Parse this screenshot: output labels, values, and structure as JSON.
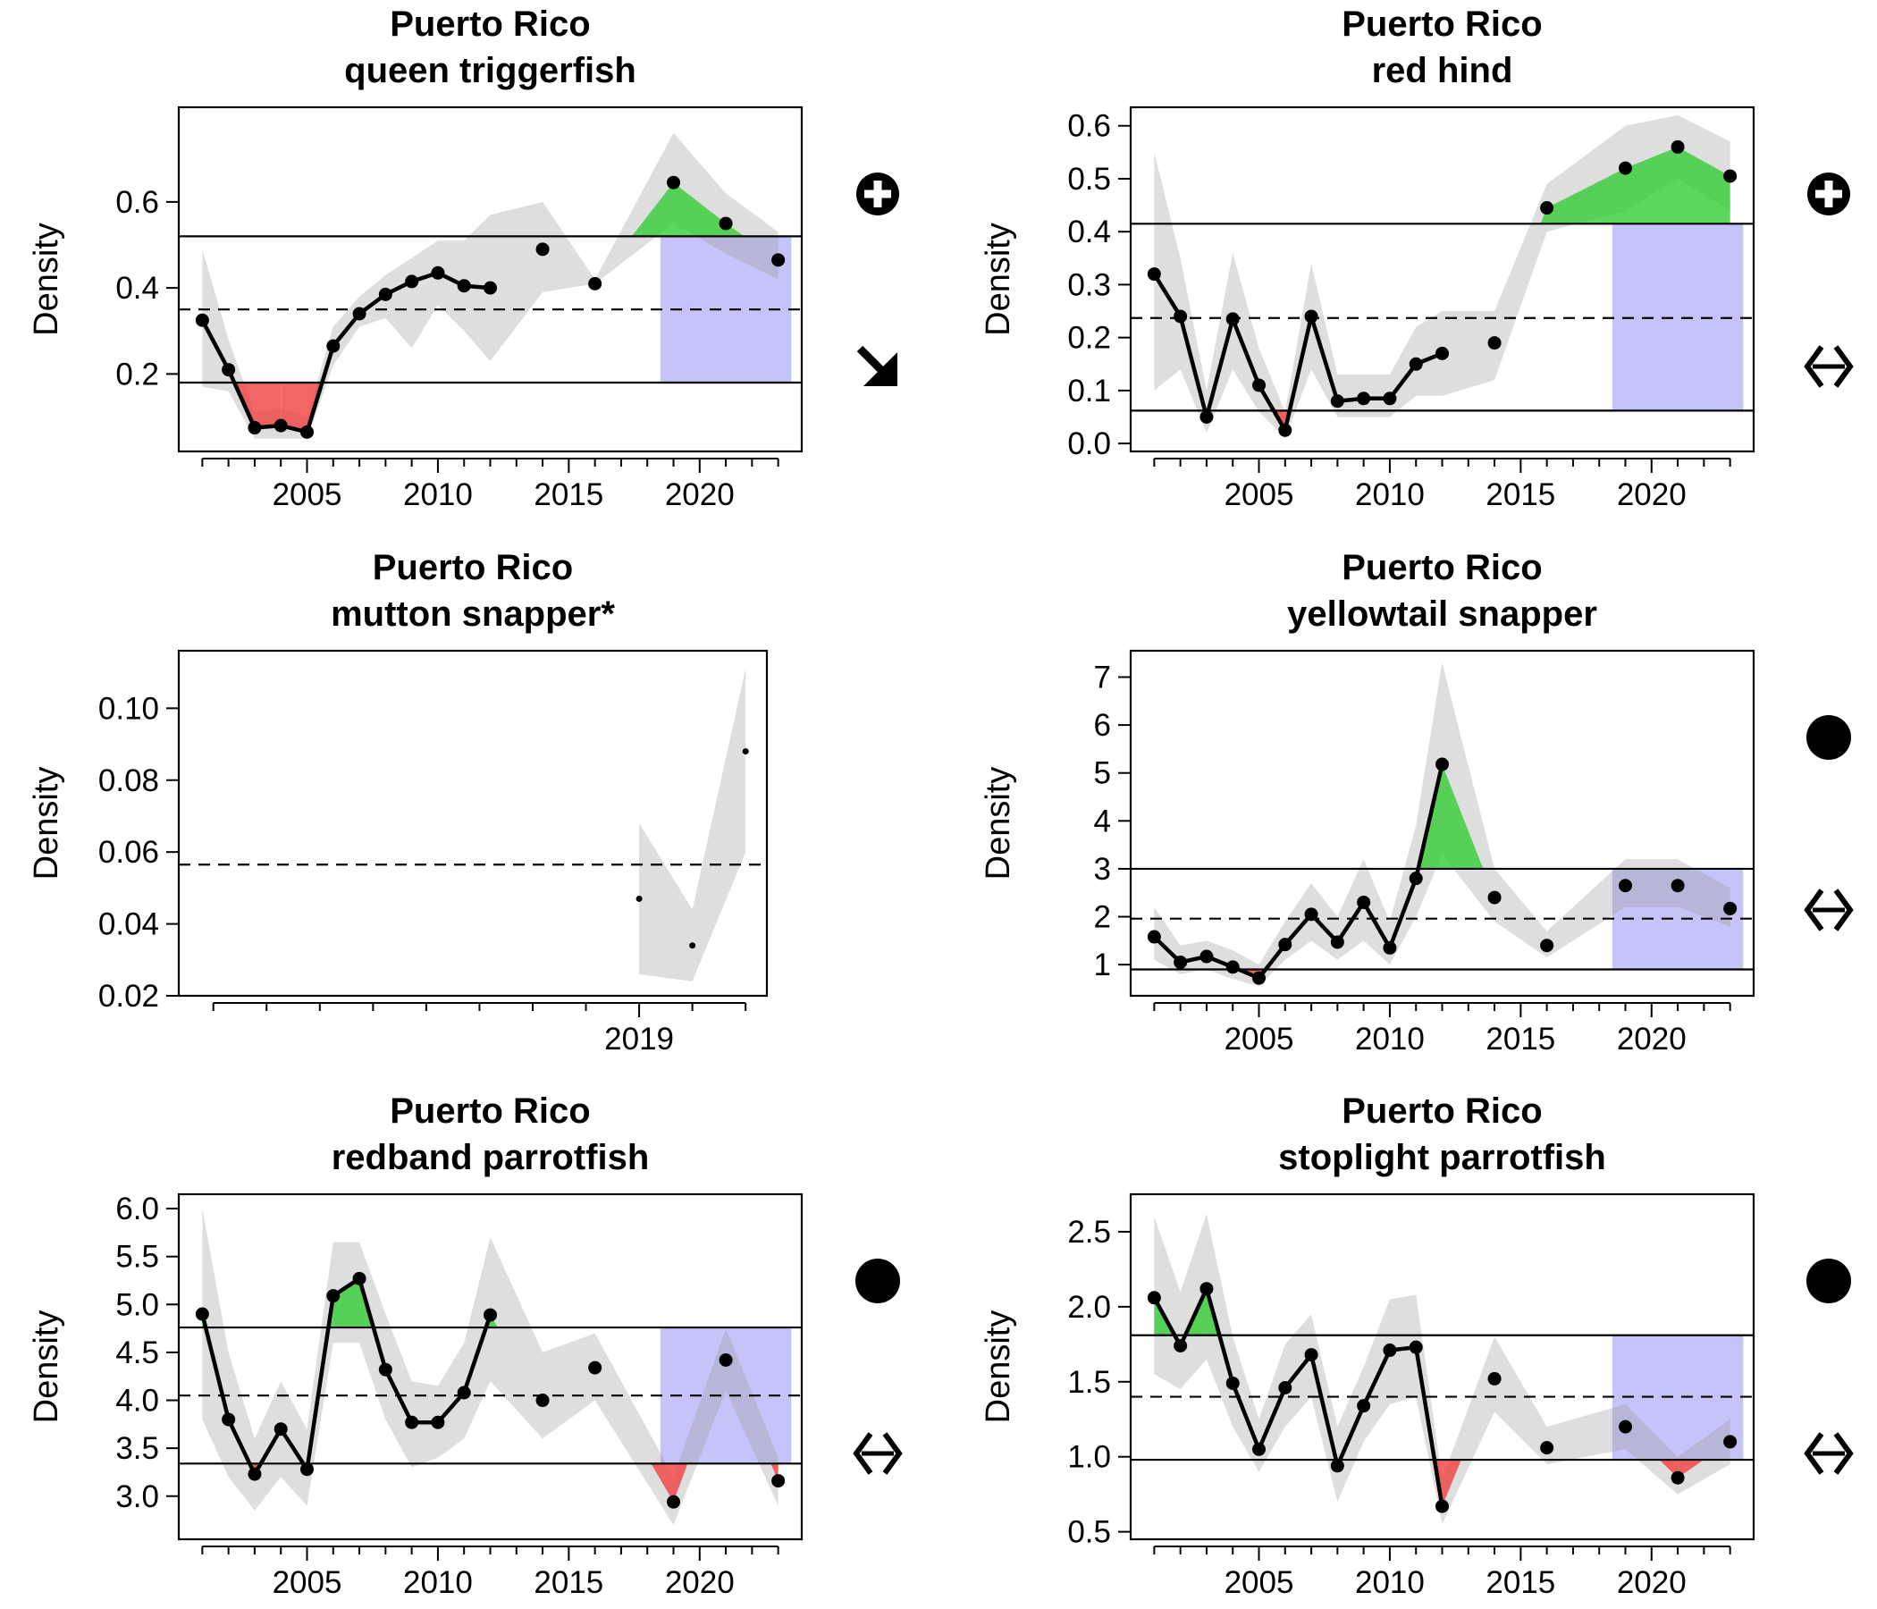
{
  "chart_data": [
    {
      "type": "line",
      "title_line1": "Puerto Rico",
      "title_line2": "queen triggerfish",
      "ylabel": "Density",
      "xlabel": "",
      "xlim": [
        2000.1,
        2023.9
      ],
      "ylim": [
        0.02,
        0.82
      ],
      "yticks": [
        0.2,
        0.4,
        0.6
      ],
      "ytick_labels": [
        "0.2",
        "0.4",
        "0.6"
      ],
      "xticks_major": [
        2005,
        2010,
        2015,
        2020
      ],
      "xtick_labels": [
        "2005",
        "2010",
        "2015",
        "2020"
      ],
      "xticks_minor": [
        2001,
        2002,
        2003,
        2004,
        2006,
        2007,
        2008,
        2009,
        2011,
        2012,
        2013,
        2014,
        2016,
        2017,
        2018,
        2019,
        2021,
        2022,
        2023
      ],
      "upper_ref": 0.52,
      "mean_ref": 0.35,
      "lower_ref": 0.18,
      "recent_window": [
        2018.5,
        2023.5
      ],
      "series": [
        {
          "x": [
            2001,
            2002,
            2003,
            2004,
            2005,
            2006,
            2007,
            2008,
            2009,
            2010,
            2011,
            2012,
            2014,
            2016,
            2019,
            2021,
            2023
          ],
          "y": [
            0.325,
            0.21,
            0.075,
            0.08,
            0.065,
            0.265,
            0.34,
            0.385,
            0.415,
            0.435,
            0.405,
            0.4,
            0.49,
            0.41,
            0.645,
            0.55,
            0.465
          ],
          "connected_until": 2012
        }
      ],
      "ci_lower": [
        0.17,
        0.16,
        0.05,
        0.05,
        0.05,
        0.22,
        0.31,
        0.33,
        0.26,
        0.36,
        0.3,
        0.23,
        0.39,
        0.41,
        0.55,
        0.48,
        0.42
      ],
      "ci_upper": [
        0.49,
        0.28,
        0.11,
        0.12,
        0.1,
        0.31,
        0.38,
        0.43,
        0.47,
        0.51,
        0.51,
        0.57,
        0.6,
        0.42,
        0.76,
        0.62,
        0.53
      ],
      "status_icons": [
        "plus-circle",
        "arrow-down-right"
      ]
    },
    {
      "type": "line",
      "title_line1": "Puerto Rico",
      "title_line2": "red hind",
      "ylabel": "Density",
      "xlabel": "",
      "xlim": [
        2000.1,
        2023.9
      ],
      "ylim": [
        -0.015,
        0.635
      ],
      "yticks": [
        0.0,
        0.1,
        0.2,
        0.3,
        0.4,
        0.5,
        0.6
      ],
      "ytick_labels": [
        "0.0",
        "0.1",
        "0.2",
        "0.3",
        "0.4",
        "0.5",
        "0.6"
      ],
      "xticks_major": [
        2005,
        2010,
        2015,
        2020
      ],
      "xtick_labels": [
        "2005",
        "2010",
        "2015",
        "2020"
      ],
      "xticks_minor": [
        2001,
        2002,
        2003,
        2004,
        2006,
        2007,
        2008,
        2009,
        2011,
        2012,
        2013,
        2014,
        2016,
        2017,
        2018,
        2019,
        2021,
        2022,
        2023
      ],
      "upper_ref": 0.415,
      "mean_ref": 0.237,
      "lower_ref": 0.062,
      "recent_window": [
        2018.5,
        2023.5
      ],
      "series": [
        {
          "x": [
            2001,
            2002,
            2003,
            2004,
            2005,
            2006,
            2007,
            2008,
            2009,
            2010,
            2011,
            2012,
            2014,
            2016,
            2019,
            2021,
            2023
          ],
          "y": [
            0.32,
            0.24,
            0.05,
            0.235,
            0.11,
            0.025,
            0.24,
            0.08,
            0.085,
            0.085,
            0.15,
            0.17,
            0.19,
            0.445,
            0.52,
            0.56,
            0.505
          ],
          "connected_until": 2012
        }
      ],
      "ci_lower": [
        0.1,
        0.14,
        0.02,
        0.14,
        0.06,
        0.01,
        0.14,
        0.05,
        0.05,
        0.05,
        0.09,
        0.09,
        0.12,
        0.4,
        0.44,
        0.5,
        0.44
      ],
      "ci_upper": [
        0.55,
        0.35,
        0.1,
        0.36,
        0.18,
        0.06,
        0.34,
        0.13,
        0.13,
        0.13,
        0.22,
        0.25,
        0.25,
        0.49,
        0.6,
        0.62,
        0.57
      ],
      "status_icons": [
        "plus-circle",
        "double-arrow"
      ]
    },
    {
      "type": "scatter",
      "title_line1": "Puerto Rico",
      "title_line2": "mutton snapper*",
      "ylabel": "Density",
      "xlabel": "",
      "xlim": [
        2010.35,
        2021.4
      ],
      "ylim": [
        0.02,
        0.116
      ],
      "yticks": [
        0.02,
        0.04,
        0.06,
        0.08,
        0.1
      ],
      "ytick_labels": [
        "0.02",
        "0.04",
        "0.06",
        "0.08",
        "0.10"
      ],
      "xticks_major": [
        2019
      ],
      "xtick_labels": [
        "2019"
      ],
      "xticks_minor": [
        2011,
        2012,
        2013,
        2014,
        2015,
        2016,
        2017,
        2018,
        2020,
        2021
      ],
      "mean_ref": 0.0565,
      "series": [
        {
          "x": [
            2019,
            2020,
            2021
          ],
          "y": [
            0.047,
            0.034,
            0.088
          ],
          "connected_until": 0
        }
      ],
      "ci_lower": [
        0.026,
        0.024,
        0.06
      ],
      "ci_upper": [
        0.068,
        0.044,
        0.111
      ],
      "status_icons": []
    },
    {
      "type": "line",
      "title_line1": "Puerto Rico",
      "title_line2": "yellowtail snapper",
      "ylabel": "Density",
      "xlabel": "",
      "xlim": [
        2000.1,
        2023.9
      ],
      "ylim": [
        0.35,
        7.55
      ],
      "yticks": [
        1,
        2,
        3,
        4,
        5,
        6,
        7
      ],
      "ytick_labels": [
        "1",
        "2",
        "3",
        "4",
        "5",
        "6",
        "7"
      ],
      "xticks_major": [
        2005,
        2010,
        2015,
        2020
      ],
      "xtick_labels": [
        "2005",
        "2010",
        "2015",
        "2020"
      ],
      "xticks_minor": [
        2001,
        2002,
        2003,
        2004,
        2006,
        2007,
        2008,
        2009,
        2011,
        2012,
        2013,
        2014,
        2016,
        2017,
        2018,
        2019,
        2021,
        2022,
        2023
      ],
      "upper_ref": 3.0,
      "mean_ref": 1.96,
      "lower_ref": 0.9,
      "recent_window": [
        2018.5,
        2023.5
      ],
      "series": [
        {
          "x": [
            2001,
            2002,
            2003,
            2004,
            2005,
            2006,
            2007,
            2008,
            2009,
            2010,
            2011,
            2012,
            2014,
            2016,
            2019,
            2021,
            2023
          ],
          "y": [
            1.58,
            1.05,
            1.17,
            0.95,
            0.72,
            1.42,
            2.05,
            1.47,
            2.3,
            1.35,
            2.8,
            5.18,
            2.4,
            1.4,
            2.65,
            2.65,
            2.17
          ],
          "connected_until": 2012
        }
      ],
      "ci_lower": [
        1.1,
        0.8,
        0.9,
        0.7,
        0.55,
        1.1,
        1.5,
        1.1,
        1.5,
        1.0,
        2.0,
        3.3,
        1.9,
        1.15,
        2.2,
        2.2,
        1.8
      ],
      "ci_upper": [
        2.2,
        1.4,
        1.5,
        1.3,
        1.0,
        1.9,
        2.7,
        2.0,
        3.2,
        1.9,
        3.9,
        7.3,
        3.0,
        1.7,
        3.2,
        3.2,
        2.6
      ],
      "status_icons": [
        "filled-circle",
        "double-arrow"
      ]
    },
    {
      "type": "line",
      "title_line1": "Puerto Rico",
      "title_line2": "redband parrotfish",
      "ylabel": "Density",
      "xlabel": "",
      "xlim": [
        2000.1,
        2023.9
      ],
      "ylim": [
        2.55,
        6.15
      ],
      "yticks": [
        3.0,
        3.5,
        4.0,
        4.5,
        5.0,
        5.5,
        6.0
      ],
      "ytick_labels": [
        "3.0",
        "3.5",
        "4.0",
        "4.5",
        "5.0",
        "5.5",
        "6.0"
      ],
      "xticks_major": [
        2005,
        2010,
        2015,
        2020
      ],
      "xtick_labels": [
        "2005",
        "2010",
        "2015",
        "2020"
      ],
      "xticks_minor": [
        2001,
        2002,
        2003,
        2004,
        2006,
        2007,
        2008,
        2009,
        2011,
        2012,
        2013,
        2014,
        2016,
        2017,
        2018,
        2019,
        2021,
        2022,
        2023
      ],
      "upper_ref": 4.76,
      "mean_ref": 4.05,
      "lower_ref": 3.34,
      "recent_window": [
        2018.5,
        2023.5
      ],
      "series": [
        {
          "x": [
            2001,
            2002,
            2003,
            2004,
            2005,
            2006,
            2007,
            2008,
            2009,
            2010,
            2011,
            2012,
            2014,
            2016,
            2019,
            2021,
            2023
          ],
          "y": [
            4.9,
            3.8,
            3.23,
            3.7,
            3.28,
            5.09,
            5.27,
            4.32,
            3.77,
            3.77,
            4.08,
            4.89,
            4.0,
            4.34,
            2.94,
            4.42,
            3.16
          ],
          "connected_until": 2012
        }
      ],
      "ci_lower": [
        3.8,
        3.2,
        2.85,
        3.2,
        2.9,
        4.6,
        4.6,
        3.8,
        3.3,
        3.4,
        3.6,
        4.2,
        3.6,
        4.0,
        2.7,
        4.1,
        2.9
      ],
      "ci_upper": [
        6.0,
        4.5,
        3.6,
        4.2,
        3.7,
        5.65,
        5.65,
        4.9,
        4.2,
        4.15,
        4.6,
        5.7,
        4.5,
        4.7,
        3.2,
        4.75,
        3.4
      ],
      "status_icons": [
        "filled-circle",
        "double-arrow"
      ]
    },
    {
      "type": "line",
      "title_line1": "Puerto Rico",
      "title_line2": "stoplight parrotfish",
      "ylabel": "Density",
      "xlabel": "",
      "xlim": [
        2000.1,
        2023.9
      ],
      "ylim": [
        0.45,
        2.75
      ],
      "yticks": [
        0.5,
        1.0,
        1.5,
        2.0,
        2.5
      ],
      "ytick_labels": [
        "0.5",
        "1.0",
        "1.5",
        "2.0",
        "2.5"
      ],
      "xticks_major": [
        2005,
        2010,
        2015,
        2020
      ],
      "xtick_labels": [
        "2005",
        "2010",
        "2015",
        "2020"
      ],
      "xticks_minor": [
        2001,
        2002,
        2003,
        2004,
        2006,
        2007,
        2008,
        2009,
        2011,
        2012,
        2013,
        2014,
        2016,
        2017,
        2018,
        2019,
        2021,
        2022,
        2023
      ],
      "upper_ref": 1.81,
      "mean_ref": 1.4,
      "lower_ref": 0.98,
      "recent_window": [
        2018.5,
        2023.5
      ],
      "series": [
        {
          "x": [
            2001,
            2002,
            2003,
            2004,
            2005,
            2006,
            2007,
            2008,
            2009,
            2010,
            2011,
            2012,
            2014,
            2016,
            2019,
            2021,
            2023
          ],
          "y": [
            2.06,
            1.74,
            2.12,
            1.49,
            1.05,
            1.46,
            1.68,
            0.94,
            1.34,
            1.71,
            1.73,
            0.67,
            1.52,
            1.06,
            1.2,
            0.86,
            1.1
          ],
          "connected_until": 2012
        }
      ],
      "ci_lower": [
        1.55,
        1.45,
        1.65,
        1.2,
        0.9,
        1.2,
        1.4,
        0.7,
        1.1,
        1.35,
        1.4,
        0.55,
        1.3,
        0.95,
        1.05,
        0.75,
        0.95
      ],
      "ci_upper": [
        2.6,
        2.1,
        2.62,
        1.8,
        1.25,
        1.75,
        1.95,
        1.2,
        1.6,
        2.05,
        2.08,
        0.85,
        1.8,
        1.2,
        1.35,
        1.0,
        1.25
      ],
      "status_icons": [
        "filled-circle",
        "double-arrow"
      ]
    }
  ]
}
